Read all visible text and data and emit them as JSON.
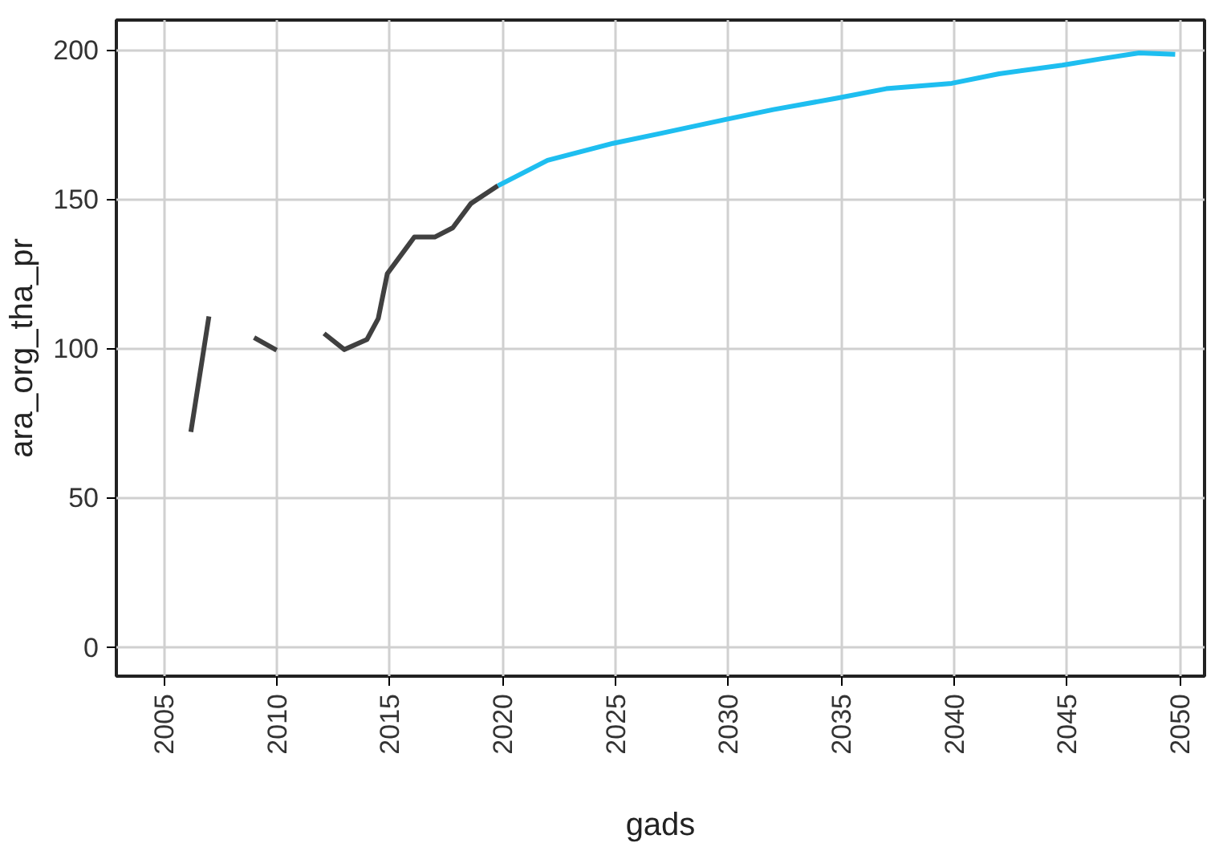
{
  "chart_data": {
    "type": "line",
    "xlabel": "gads",
    "ylabel": "ara_org_tha_pr",
    "xlim": [
      2002.9,
      2051.1
    ],
    "ylim": [
      -9.8,
      210
    ],
    "xticks": [
      2005,
      2010,
      2015,
      2020,
      2025,
      2030,
      2035,
      2040,
      2045,
      2050
    ],
    "yticks": [
      0,
      50,
      100,
      150,
      200
    ],
    "grid": true,
    "line_style": "solid",
    "series": [
      {
        "color": "#404040",
        "x": [
          2006.2,
          2007,
          2008,
          2009,
          2010,
          2011,
          2012.1,
          2013,
          2014,
          2014.5,
          2014.9,
          2016.1,
          2017,
          2017.8,
          2018.6,
          2019.8
        ],
        "values": [
          72,
          110.7,
          null,
          103.6,
          99.4,
          null,
          105,
          99.6,
          103,
          110,
          125,
          137.3,
          137.3,
          140.4,
          148.5,
          154.5
        ]
      },
      {
        "color": "#1ebef0",
        "x": [
          2019.8,
          2022,
          2024.9,
          2027,
          2029.9,
          2032,
          2034.8,
          2037,
          2039.9,
          2042,
          2044.8,
          2046.5,
          2048.2,
          2049.8
        ],
        "values": [
          154.5,
          163,
          168.7,
          172,
          176.7,
          180,
          183.8,
          187,
          188.8,
          192,
          194.9,
          197,
          199,
          198.5
        ]
      }
    ]
  }
}
